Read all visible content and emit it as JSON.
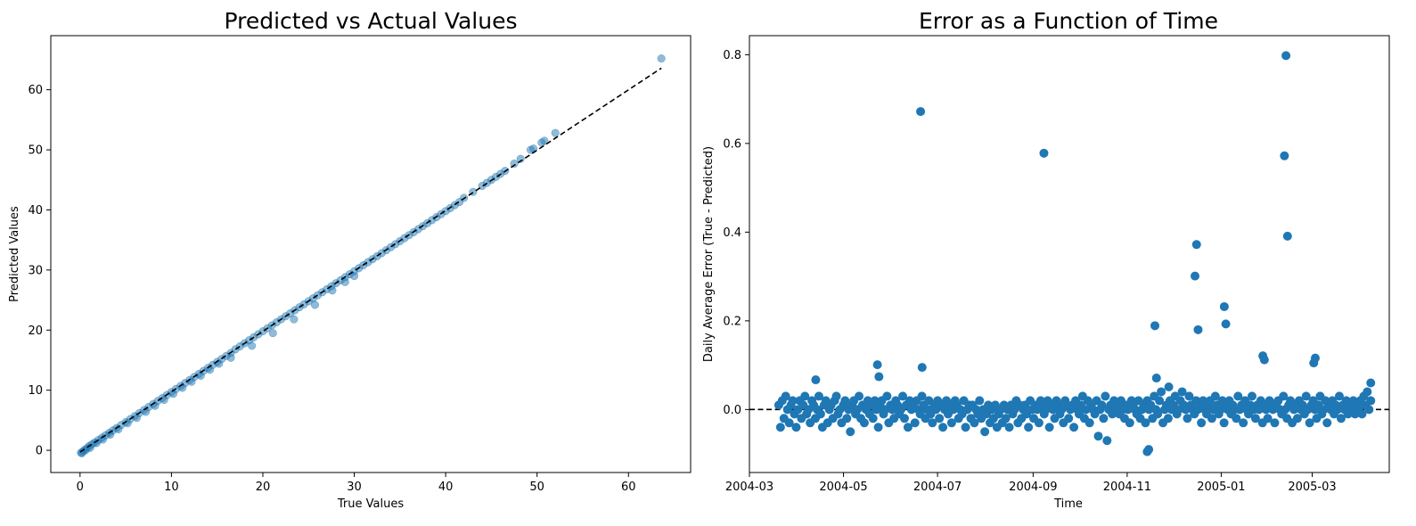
{
  "chart_data": [
    {
      "type": "scatter",
      "title": "Predicted vs Actual Values",
      "xlabel": "True Values",
      "ylabel": "Predicted Values",
      "xlim": [
        -3.2,
        66.8
      ],
      "ylim": [
        -3.7,
        69.0
      ],
      "xticks": [
        0,
        10,
        20,
        30,
        40,
        50,
        60
      ],
      "yticks": [
        0,
        10,
        20,
        30,
        40,
        50,
        60
      ],
      "marker_color": "#1f77b4",
      "marker_alpha": 0.5,
      "reference_line": {
        "style": "dashed",
        "color": "#000000",
        "from": [
          0.0,
          -0.3
        ],
        "to": [
          63.6,
          63.6
        ]
      },
      "series": [
        {
          "x": [
            0.1,
            0.3,
            0.5,
            0.8,
            1.0,
            1.3,
            1.6,
            2.0,
            2.4,
            2.8,
            3.2,
            3.6,
            4.0,
            4.5,
            5.0,
            5.5,
            6.0,
            6.5,
            7.0,
            7.5,
            8.0,
            8.5,
            9.0,
            9.5,
            10.0,
            10.5,
            11.0,
            11.5,
            12.0,
            12.5,
            13.0,
            13.5,
            14.0,
            14.5,
            15.0,
            15.5,
            16.0,
            16.5,
            17.0,
            17.5,
            18.0,
            18.5,
            19.0,
            19.5,
            20.0,
            20.5,
            21.0,
            21.5,
            22.0,
            22.5,
            23.0,
            23.5,
            24.0,
            24.5,
            25.0,
            25.5,
            26.0,
            26.5,
            27.0,
            27.5,
            28.0,
            28.5,
            29.0,
            29.5,
            30.0,
            30.5,
            31.0,
            31.5,
            32.0,
            32.5,
            33.0,
            33.5,
            34.0,
            34.5,
            35.0,
            35.5,
            36.0,
            36.5,
            37.0,
            37.5,
            38.0,
            38.5,
            39.0,
            39.5,
            40.0,
            40.5,
            41.0,
            41.5,
            42.0,
            43.0,
            44.0,
            44.5,
            45.0,
            45.5,
            46.0,
            46.5,
            47.5,
            48.2,
            49.3,
            49.6,
            50.5,
            50.8,
            52.0,
            63.6,
            0.2,
            0.6,
            1.1,
            1.8,
            2.5,
            3.3,
            4.2,
            5.2,
            6.2,
            7.2,
            8.2,
            9.2,
            10.2,
            11.2,
            12.2,
            13.2,
            14.2,
            15.2,
            16.5,
            18.8,
            21.1,
            23.4,
            25.7,
            27.6,
            29.0,
            30.0
          ],
          "y": [
            -0.4,
            -0.2,
            0.1,
            0.4,
            0.7,
            1.0,
            1.3,
            1.7,
            2.1,
            2.5,
            2.9,
            3.3,
            3.7,
            4.2,
            4.7,
            5.2,
            5.7,
            6.2,
            6.7,
            7.2,
            7.7,
            8.2,
            8.7,
            9.2,
            9.7,
            10.2,
            10.7,
            11.2,
            11.7,
            12.2,
            12.7,
            13.2,
            13.7,
            14.2,
            14.7,
            15.2,
            15.7,
            16.2,
            16.8,
            17.3,
            17.8,
            18.3,
            18.8,
            19.3,
            19.8,
            20.3,
            20.8,
            21.3,
            21.8,
            22.3,
            22.8,
            23.3,
            23.8,
            24.3,
            24.8,
            25.3,
            25.8,
            26.3,
            26.8,
            27.3,
            27.8,
            28.3,
            28.8,
            29.3,
            29.8,
            30.3,
            30.8,
            31.3,
            31.8,
            32.3,
            32.8,
            33.3,
            33.8,
            34.3,
            34.8,
            35.3,
            35.8,
            36.3,
            36.8,
            37.3,
            37.8,
            38.3,
            38.8,
            39.3,
            39.8,
            40.3,
            40.8,
            41.3,
            42.0,
            43.0,
            44.0,
            44.5,
            45.0,
            45.5,
            46.0,
            46.5,
            47.7,
            48.5,
            50.0,
            50.2,
            51.2,
            51.5,
            52.8,
            65.2,
            -0.5,
            0.0,
            0.4,
            1.2,
            1.8,
            2.6,
            3.5,
            4.5,
            5.4,
            6.4,
            7.4,
            8.4,
            9.4,
            10.4,
            11.4,
            12.4,
            13.4,
            14.4,
            15.4,
            17.4,
            19.5,
            21.8,
            24.2,
            26.6,
            28.0,
            29.0
          ]
        }
      ]
    },
    {
      "type": "scatter",
      "title": "Error as a Function of Time",
      "xlabel": "Time",
      "ylabel": "Daily Average Error (True - Predicted)",
      "xlim": [
        "2004-03-01",
        "2005-04-20"
      ],
      "ylim": [
        -0.142,
        0.843
      ],
      "xticks": [
        "2004-03",
        "2004-05",
        "2004-07",
        "2004-09",
        "2004-11",
        "2005-01",
        "2005-03"
      ],
      "yticks": [
        "0.0",
        "0.2",
        "0.4",
        "0.6",
        "0.8"
      ],
      "marker_color": "#1f77b4",
      "reference_line": {
        "style": "dashed",
        "color": "#000000",
        "y": 0.0
      },
      "outliers": [
        {
          "x": "2004-04-13",
          "y": 0.067
        },
        {
          "x": "2004-05-23",
          "y": 0.101
        },
        {
          "x": "2004-05-24",
          "y": 0.074
        },
        {
          "x": "2004-06-20",
          "y": 0.672
        },
        {
          "x": "2004-06-21",
          "y": 0.095
        },
        {
          "x": "2004-09-08",
          "y": 0.578
        },
        {
          "x": "2004-11-14",
          "y": -0.095
        },
        {
          "x": "2004-11-15",
          "y": -0.09
        },
        {
          "x": "2004-11-19",
          "y": 0.189
        },
        {
          "x": "2004-11-20",
          "y": 0.071
        },
        {
          "x": "2004-12-15",
          "y": 0.301
        },
        {
          "x": "2004-12-16",
          "y": 0.372
        },
        {
          "x": "2004-12-17",
          "y": 0.18
        },
        {
          "x": "2005-01-03",
          "y": 0.232
        },
        {
          "x": "2005-01-04",
          "y": 0.193
        },
        {
          "x": "2005-01-28",
          "y": 0.121
        },
        {
          "x": "2005-01-29",
          "y": 0.112
        },
        {
          "x": "2005-02-11",
          "y": 0.572
        },
        {
          "x": "2005-02-12",
          "y": 0.798
        },
        {
          "x": "2005-02-13",
          "y": 0.391
        },
        {
          "x": "2005-03-03",
          "y": 0.116
        },
        {
          "x": "2005-03-02",
          "y": 0.105
        },
        {
          "x": "2004-11-28",
          "y": 0.051
        },
        {
          "x": "2005-04-08",
          "y": 0.06
        }
      ],
      "daily_series": {
        "start": "2004-03-20",
        "end": "2005-04-08",
        "y": [
          0.01,
          -0.04,
          0.02,
          -0.02,
          0.03,
          0.0,
          -0.03,
          0.01,
          0.02,
          -0.01,
          -0.04,
          0.0,
          0.02,
          -0.02,
          0.01,
          0.03,
          -0.01,
          0.0,
          -0.03,
          0.02,
          0.01,
          -0.02,
          0.0,
          0.03,
          -0.01,
          -0.04,
          0.01,
          0.02,
          -0.03,
          0.0,
          0.01,
          -0.02,
          0.02,
          0.03,
          -0.01,
          0.0,
          -0.03,
          0.01,
          0.02,
          -0.02,
          0.0,
          -0.05,
          0.01,
          0.02,
          -0.01,
          0.0,
          0.03,
          -0.02,
          0.01,
          -0.03,
          0.0,
          0.02,
          -0.01,
          0.01,
          -0.02,
          0.02,
          0.0,
          -0.04,
          0.01,
          0.02,
          -0.01,
          0.0,
          0.03,
          -0.03,
          0.01,
          0.0,
          -0.02,
          0.02,
          0.01,
          -0.01,
          0.0,
          0.03,
          -0.02,
          0.01,
          -0.04,
          0.02,
          0.0,
          0.01,
          -0.03,
          0.02,
          0.0,
          -0.01,
          0.03,
          0.01,
          -0.02,
          0.0,
          0.02,
          -0.01,
          -0.03,
          0.01,
          0.0,
          0.02,
          -0.02,
          0.01,
          -0.04,
          0.0,
          0.02,
          -0.01,
          0.01,
          -0.03,
          0.0,
          0.02,
          0.01,
          -0.02,
          0.0,
          -0.01,
          0.02,
          -0.04,
          0.0,
          0.01,
          -0.02,
          0.01,
          -0.03,
          0.0,
          -0.01,
          0.02,
          -0.02,
          0.0,
          -0.05,
          -0.01,
          0.01,
          -0.03,
          0.0,
          -0.02,
          0.01,
          -0.04,
          -0.01,
          0.0,
          -0.03,
          0.01,
          -0.02,
          0.0,
          -0.04,
          0.01,
          -0.01,
          0.0,
          0.02,
          -0.03,
          0.01,
          -0.02,
          0.0,
          0.01,
          -0.01,
          -0.04,
          0.02,
          0.0,
          -0.02,
          0.01,
          0.0,
          -0.03,
          0.02,
          0.01,
          -0.01,
          0.0,
          0.02,
          -0.04,
          0.01,
          0.0,
          -0.02,
          0.02,
          0.01,
          -0.01,
          0.0,
          -0.03,
          0.02,
          0.01,
          -0.02,
          0.0,
          0.01,
          -0.04,
          0.02,
          0.0,
          -0.01,
          0.01,
          0.03,
          -0.02,
          0.0,
          0.02,
          -0.03,
          0.01,
          0.0,
          -0.01,
          0.02,
          -0.06,
          0.0,
          0.01,
          -0.02,
          0.03,
          -0.07,
          0.0,
          0.01,
          -0.01,
          0.02,
          0.0,
          0.01,
          -0.01,
          0.02,
          0.0,
          -0.02,
          0.01,
          0.0,
          -0.03,
          0.02,
          0.01,
          0.0,
          -0.01,
          0.02,
          -0.02,
          0.0,
          0.01,
          -0.03,
          0.02,
          0.0,
          0.01,
          -0.02,
          0.03,
          0.0,
          -0.01,
          0.02,
          0.04,
          -0.03,
          0.0,
          0.01,
          -0.02,
          0.02,
          0.0,
          0.01,
          0.03,
          -0.01,
          0.0,
          0.02,
          0.04,
          0.01,
          0.0,
          -0.02,
          0.03,
          0.01,
          0.0,
          -0.01,
          0.02,
          0.0,
          0.01,
          -0.03,
          0.02,
          0.0,
          -0.01,
          0.01,
          0.02,
          -0.02,
          0.0,
          0.03,
          0.01,
          -0.01,
          0.0,
          0.02,
          -0.03,
          0.01,
          0.0,
          0.02,
          -0.01,
          0.01,
          0.0,
          -0.02,
          0.03,
          0.0,
          0.01,
          -0.03,
          0.02,
          0.0,
          -0.01,
          0.01,
          0.03,
          0.0,
          -0.02,
          0.01,
          0.0,
          0.02,
          -0.03,
          0.01,
          0.0,
          -0.02,
          0.02,
          0.01,
          0.0,
          -0.03,
          0.01,
          0.02,
          0.0,
          -0.01,
          0.03,
          0.0,
          -0.02,
          0.01,
          0.02,
          -0.03,
          0.0,
          0.01,
          -0.02,
          0.02,
          0.0,
          0.01,
          -0.01,
          0.03,
          0.0,
          -0.03,
          0.01,
          0.02,
          0.0,
          -0.02,
          0.01,
          0.03,
          -0.01,
          0.0,
          0.02,
          -0.03,
          0.01,
          0.0,
          0.02,
          -0.01,
          0.01,
          0.0,
          0.03,
          -0.02,
          0.01,
          0.0,
          0.02,
          -0.01,
          0.01,
          0.0,
          0.02,
          -0.01,
          0.01,
          0.0,
          0.02,
          -0.01,
          0.03,
          0.01,
          0.04,
          0.0,
          0.02
        ]
      }
    }
  ]
}
